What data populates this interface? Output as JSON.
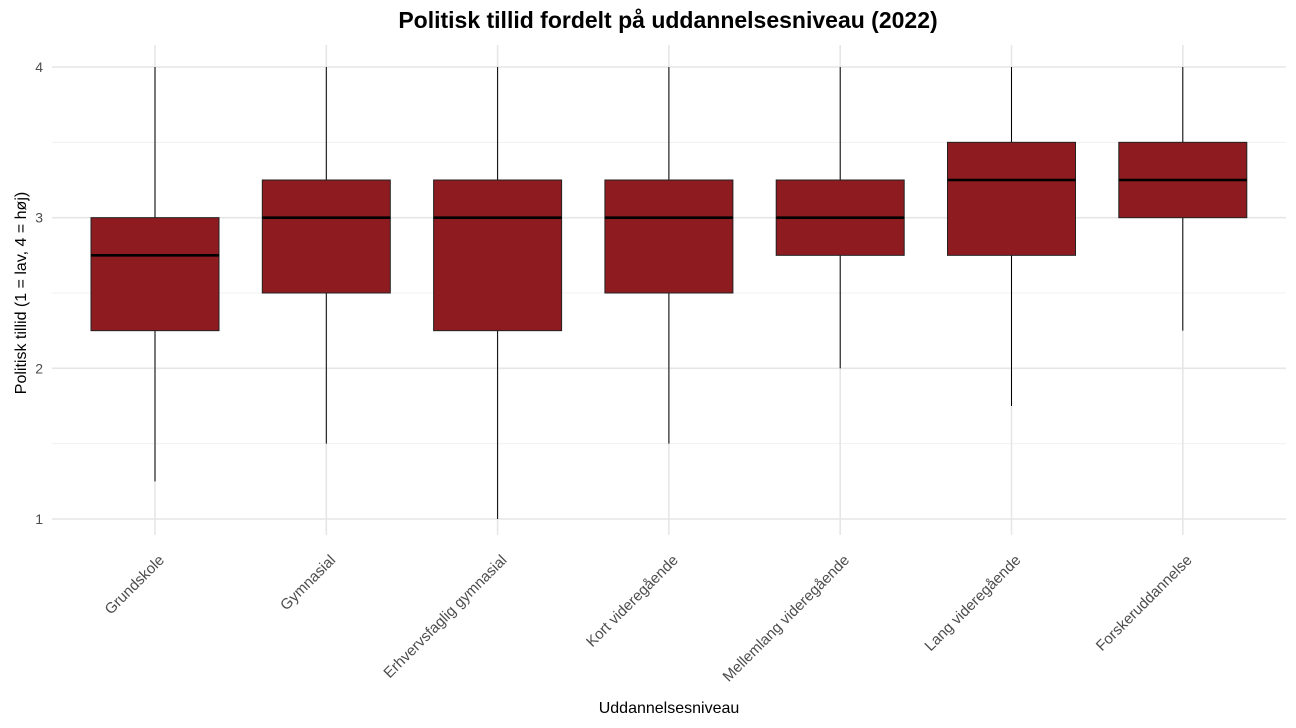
{
  "chart_data": {
    "type": "box",
    "title": "Politisk tillid fordelt på uddannelsesniveau (2022)",
    "xlabel": "Uddannelsesniveau",
    "ylabel": "Politisk tillid (1 = lav, 4 = høj)",
    "ylim": [
      1,
      4
    ],
    "yticks": [
      "1",
      "2",
      "3",
      "4"
    ],
    "grid": true,
    "box_color": "#8e1b20",
    "median_color": "#000000",
    "categories": [
      "Grundskole",
      "Gymnasial",
      "Erhvervsfaglig gymnasial",
      "Kort videregående",
      "Mellemlang videregående",
      "Lang videregående",
      "Forskeruddannelse"
    ],
    "boxes": [
      {
        "min": 1.25,
        "q1": 2.25,
        "median": 2.75,
        "q3": 3.0,
        "max": 4.0
      },
      {
        "min": 1.5,
        "q1": 2.5,
        "median": 3.0,
        "q3": 3.25,
        "max": 4.0
      },
      {
        "min": 1.0,
        "q1": 2.25,
        "median": 3.0,
        "q3": 3.25,
        "max": 4.0
      },
      {
        "min": 1.5,
        "q1": 2.5,
        "median": 3.0,
        "q3": 3.25,
        "max": 4.0
      },
      {
        "min": 2.0,
        "q1": 2.75,
        "median": 3.0,
        "q3": 3.25,
        "max": 4.0
      },
      {
        "min": 1.75,
        "q1": 2.75,
        "median": 3.25,
        "q3": 3.5,
        "max": 4.0
      },
      {
        "min": 2.25,
        "q1": 3.0,
        "median": 3.25,
        "q3": 3.5,
        "max": 4.0
      }
    ]
  }
}
